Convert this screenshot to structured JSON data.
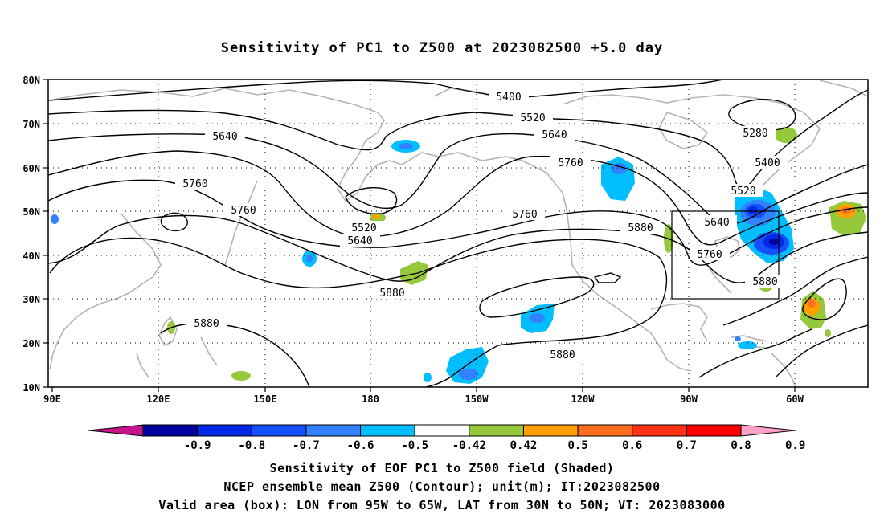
{
  "title": "Sensitivity of PC1 to Z500 at 2023082500 +5.0 day",
  "axes": {
    "lat_labels": [
      "80N",
      "70N",
      "60N",
      "50N",
      "40N",
      "30N",
      "20N",
      "10N"
    ],
    "lon_labels": [
      "90E",
      "120E",
      "150E",
      "180",
      "150W",
      "120W",
      "90W",
      "60W"
    ]
  },
  "contours": {
    "labels": [
      "5400",
      "5520",
      "5640",
      "5760",
      "5880",
      "5280"
    ]
  },
  "colorbar": {
    "labels": [
      "-0.9",
      "-0.8",
      "-0.7",
      "-0.6",
      "-0.5",
      "-0.42",
      "0.42",
      "0.5",
      "0.6",
      "0.7",
      "0.8",
      "0.9"
    ],
    "colors": [
      "#c8148c",
      "#0000a0",
      "#0028e6",
      "#1450ff",
      "#3282ff",
      "#00beff",
      "#ffffff",
      "#96c83c",
      "#ffa000",
      "#ff6e1e",
      "#ff3214",
      "#ff0000",
      "#ffa0c8"
    ]
  },
  "captions": [
    "Sensitivity of EOF PC1 to Z500 field (Shaded)",
    "NCEP ensemble mean Z500 (Contour); unit(m); IT:2023082500",
    "Valid area (box): LON from 95W to 65W, LAT from 30N to 50N; VT: 2023083000"
  ]
}
